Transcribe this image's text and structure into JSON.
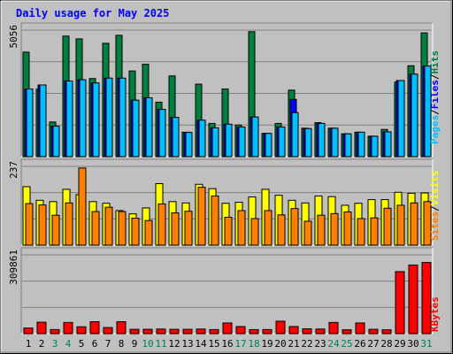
{
  "chart_data": [
    {
      "type": "bar",
      "panel": "hits-files-pages",
      "title": "Daily usage for May 2025",
      "y_axis_max_label": "5056",
      "ylim": [
        0,
        5056
      ],
      "grid": true,
      "categories": [
        "1",
        "2",
        "3",
        "4",
        "5",
        "6",
        "7",
        "8",
        "9",
        "10",
        "11",
        "12",
        "13",
        "14",
        "15",
        "16",
        "17",
        "18",
        "19",
        "20",
        "21",
        "22",
        "23",
        "24",
        "25",
        "26",
        "27",
        "28",
        "29",
        "30",
        "31"
      ],
      "weekend_days": [
        "3",
        "4",
        "10",
        "11",
        "17",
        "18",
        "24",
        "25",
        "31"
      ],
      "series_labels": [
        "Pages",
        "Files",
        "Hits"
      ],
      "series": [
        {
          "name": "Hits",
          "color": "#008040",
          "values": [
            4176,
            2696,
            1384,
            4816,
            4704,
            3120,
            4528,
            4848,
            3424,
            3692,
            2176,
            3224,
            976,
            2896,
            1328,
            2704,
            1264,
            4992,
            928,
            1328,
            2656,
            1136,
            1360,
            1136,
            912,
            976,
            816,
            1088,
            2976,
            3632,
            4944
          ]
        },
        {
          "name": "Files",
          "color": "#0000ff",
          "values": [
            2704,
            2864,
            1216,
            3024,
            3072,
            2944,
            3136,
            3136,
            2256,
            2352,
            1888,
            1568,
            968,
            1456,
            1152,
            1296,
            1184,
            1584,
            928,
            1184,
            2288,
            1120,
            1328,
            1136,
            912,
            976,
            816,
            992,
            3040,
            3296,
            3616
          ]
        },
        {
          "name": "Pages",
          "color": "#00bfff",
          "values": [
            2704,
            2864,
            1216,
            3024,
            3072,
            2944,
            3136,
            3136,
            2256,
            2352,
            1888,
            1568,
            968,
            1456,
            1152,
            1296,
            1184,
            1584,
            928,
            1184,
            1760,
            1120,
            1328,
            1136,
            912,
            976,
            816,
            992,
            3040,
            3296,
            3616
          ]
        }
      ]
    },
    {
      "type": "bar",
      "panel": "visits-sites",
      "y_axis_max_label": "237",
      "ylim": [
        0,
        237
      ],
      "grid": true,
      "series_labels": [
        "Sites",
        "Visits"
      ],
      "series": [
        {
          "name": "Visits",
          "color": "#ffff00",
          "values": [
            176,
            135,
            131,
            168,
            152,
            131,
            126,
            104,
            94,
            112,
            185,
            131,
            127,
            183,
            170,
            126,
            129,
            145,
            168,
            150,
            135,
            127,
            148,
            146,
            120,
            126,
            137,
            137,
            159,
            156,
            157
          ]
        },
        {
          "name": "Sites",
          "color": "#ff8000",
          "values": [
            125,
            121,
            90,
            127,
            232,
            101,
            114,
            101,
            81,
            74,
            124,
            97,
            102,
            174,
            148,
            84,
            104,
            80,
            104,
            91,
            110,
            72,
            90,
            95,
            100,
            80,
            82,
            111,
            120,
            127,
            131
          ]
        }
      ]
    },
    {
      "type": "bar",
      "panel": "kbytes",
      "y_axis_max_label": "309861",
      "ylim": [
        0,
        309861
      ],
      "grid": true,
      "series_labels": [
        "KBytes"
      ],
      "series": [
        {
          "name": "KBytes",
          "color": "#ff0000",
          "values": [
            22000,
            45000,
            16000,
            44000,
            27000,
            47000,
            24000,
            47000,
            17000,
            17000,
            18000,
            17000,
            17000,
            18000,
            16000,
            42000,
            28000,
            16000,
            16000,
            49000,
            28000,
            19000,
            18000,
            44000,
            15000,
            42000,
            17000,
            15000,
            244000,
            270000,
            280000
          ]
        }
      ]
    }
  ],
  "legend_colors": {
    "Pages": "#00bfff",
    "Files": "#0000ff",
    "Hits": "#008040",
    "Sites": "#ff8000",
    "Visits": "#ffff00",
    "KBytes": "#ff0000",
    "separator": "#000000",
    "weekday_label": "#000000",
    "weekend_label": "#00804f",
    "title": "#0000ff"
  }
}
